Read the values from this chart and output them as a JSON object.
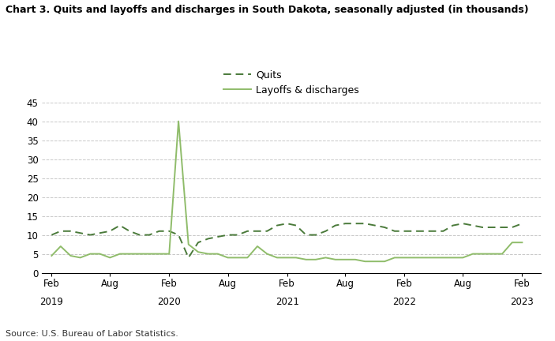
{
  "title": "Chart 3. Quits and layoffs and discharges in South Dakota, seasonally adjusted (in thousands)",
  "source": "Source: U.S. Bureau of Labor Statistics.",
  "quits_label": "Quits",
  "layoffs_label": "Layoffs & discharges",
  "quits_color": "#4a7a3a",
  "layoffs_color": "#8fbc6a",
  "background_color": "#ffffff",
  "grid_color": "#c8c8c8",
  "ylim": [
    0,
    45
  ],
  "yticks": [
    0,
    5,
    10,
    15,
    20,
    25,
    30,
    35,
    40,
    45
  ],
  "quits_y": [
    10,
    11,
    11,
    10.5,
    10,
    10.5,
    11,
    12.5,
    11,
    10,
    10,
    11,
    11,
    10,
    4,
    8,
    9,
    9.5,
    10,
    10,
    11,
    11,
    11,
    12.5,
    13,
    12.5,
    10,
    10,
    11,
    12.5,
    13,
    13,
    13,
    12.5,
    12,
    11,
    11,
    11,
    11,
    11,
    11,
    12.5,
    13,
    12.5,
    12,
    12,
    12,
    12,
    13
  ],
  "layoffs_y": [
    4.5,
    7,
    4.5,
    4,
    5,
    5,
    4,
    5,
    5,
    5,
    5,
    5,
    5,
    40,
    7.5,
    5.5,
    5,
    5,
    4,
    4,
    4,
    7,
    5,
    4,
    4,
    4,
    3.5,
    3.5,
    4,
    3.5,
    3.5,
    3.5,
    3,
    3,
    3,
    4,
    4,
    4,
    4,
    4,
    4,
    4,
    4,
    5,
    5,
    5,
    5,
    8,
    8
  ]
}
